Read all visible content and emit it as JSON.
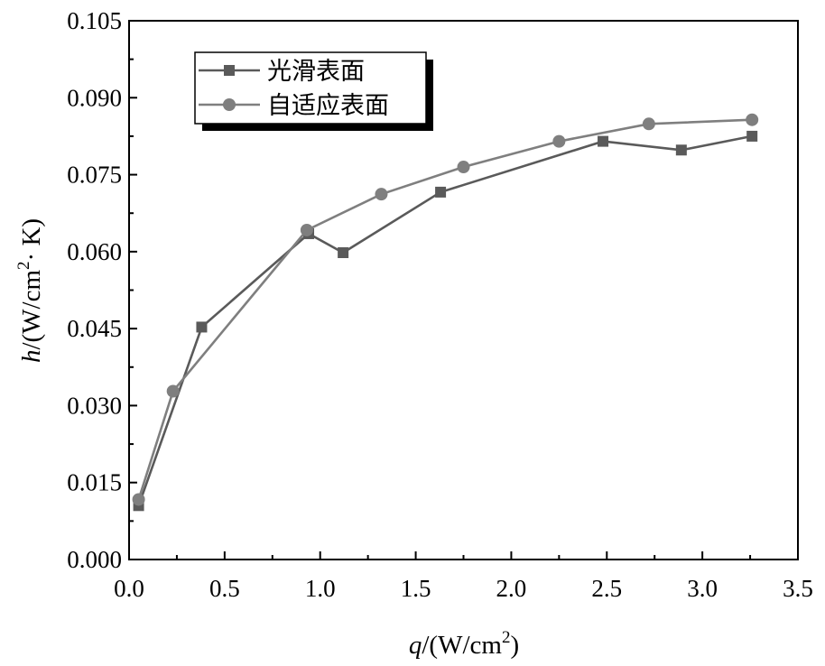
{
  "chart_data": {
    "type": "line",
    "xlabel": {
      "var": "q",
      "rest": "/(W/cm",
      "sup": "2",
      "close": ")"
    },
    "ylabel": {
      "var": "h",
      "rest": "/(W/cm",
      "sup": "2",
      "tail": "· K)"
    },
    "xlim": [
      0.0,
      3.5
    ],
    "ylim": [
      0.0,
      0.105
    ],
    "xticks": [
      "0.0",
      "0.5",
      "1.0",
      "1.5",
      "2.0",
      "2.5",
      "3.0",
      "3.5"
    ],
    "yticks": [
      "0.000",
      "0.015",
      "0.030",
      "0.045",
      "0.060",
      "0.075",
      "0.090",
      "0.105"
    ],
    "grid": false,
    "legend_position": "top-left",
    "series": [
      {
        "name": "光滑表面",
        "marker": "square",
        "color": "#5a5a5a",
        "x": [
          0.05,
          0.38,
          0.94,
          1.12,
          1.63,
          2.48,
          2.89,
          3.26
        ],
        "y": [
          0.0105,
          0.0453,
          0.0635,
          0.0598,
          0.0716,
          0.0815,
          0.0798,
          0.0825
        ]
      },
      {
        "name": "自适应表面",
        "marker": "circle",
        "color": "#7f7f7f",
        "x": [
          0.05,
          0.23,
          0.93,
          1.32,
          1.75,
          2.25,
          2.72,
          3.26
        ],
        "y": [
          0.0117,
          0.0328,
          0.0642,
          0.0712,
          0.0765,
          0.0815,
          0.0849,
          0.0857
        ]
      }
    ]
  }
}
